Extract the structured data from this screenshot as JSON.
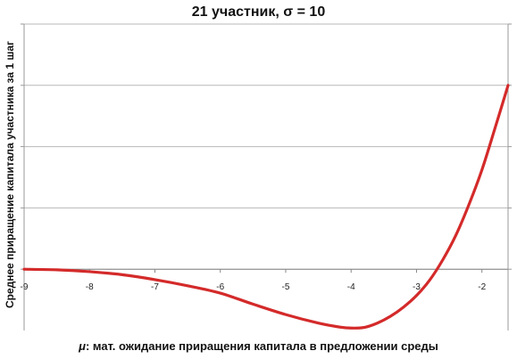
{
  "chart_data": {
    "type": "line",
    "title": "21 участник, σ = 10",
    "xlabel_symbol": "μ",
    "xlabel_rest": ": мат. ожидание приращения капитала в предложении среды",
    "ylabel": "Среднее приращение капитала участника за 1 шаг",
    "xlim": [
      -9,
      -1.6
    ],
    "ylim": [
      -1.0,
      4.0
    ],
    "x_ticks": [
      -9,
      -8,
      -7,
      -6,
      -5,
      -4,
      -3,
      -2
    ],
    "x_tick_labels": [
      "-9",
      "-8",
      "-7",
      "-6",
      "-5",
      "-4",
      "-3",
      "-2"
    ],
    "y_gridlines": [
      0,
      1,
      2,
      3,
      4
    ],
    "y_tick_labels_visible": false,
    "grid": "horizontal",
    "series": [
      {
        "color": "#d42a2a",
        "x": [
          -9.0,
          -8.5,
          -8.0,
          -7.5,
          -7.0,
          -6.5,
          -6.0,
          -5.5,
          -5.0,
          -4.5,
          -4.2,
          -4.0,
          -3.8,
          -3.6,
          -3.4,
          -3.2,
          -3.0,
          -2.8,
          -2.6,
          -2.4,
          -2.2,
          -2.0,
          -1.8,
          -1.6
        ],
        "y": [
          0.0,
          -0.01,
          -0.04,
          -0.09,
          -0.17,
          -0.27,
          -0.39,
          -0.57,
          -0.74,
          -0.88,
          -0.94,
          -0.96,
          -0.95,
          -0.88,
          -0.77,
          -0.62,
          -0.43,
          -0.18,
          0.15,
          0.55,
          1.05,
          1.62,
          2.3,
          3.0
        ]
      }
    ]
  }
}
